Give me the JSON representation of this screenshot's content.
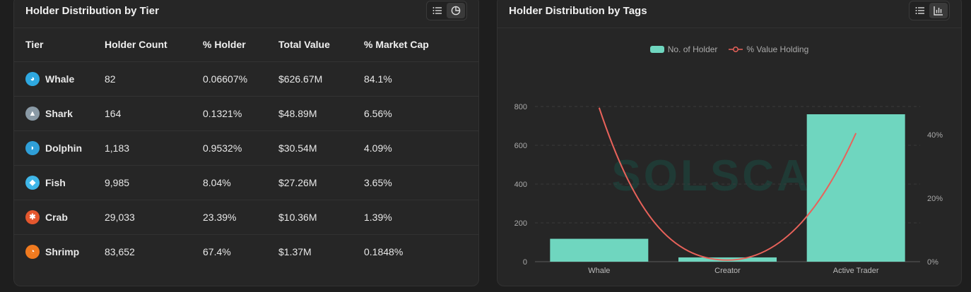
{
  "tier_panel": {
    "title": "Holder Distribution by Tier",
    "columns": [
      "Tier",
      "Holder Count",
      "% Holder",
      "Total Value",
      "% Market Cap"
    ],
    "rows": [
      {
        "tier": "Whale",
        "icon": "whale-icon",
        "color": "#2ea8e0",
        "holder_count": "82",
        "pct_holder": "0.06607%",
        "total_value": "$626.67M",
        "pct_market_cap": "84.1%"
      },
      {
        "tier": "Shark",
        "icon": "shark-icon",
        "color": "#8a9aa6",
        "holder_count": "164",
        "pct_holder": "0.1321%",
        "total_value": "$48.89M",
        "pct_market_cap": "6.56%"
      },
      {
        "tier": "Dolphin",
        "icon": "dolphin-icon",
        "color": "#2f9fd8",
        "holder_count": "1,183",
        "pct_holder": "0.9532%",
        "total_value": "$30.54M",
        "pct_market_cap": "4.09%"
      },
      {
        "tier": "Fish",
        "icon": "fish-icon",
        "color": "#3fb6e8",
        "holder_count": "9,985",
        "pct_holder": "8.04%",
        "total_value": "$27.26M",
        "pct_market_cap": "3.65%"
      },
      {
        "tier": "Crab",
        "icon": "crab-icon",
        "color": "#e4572e",
        "holder_count": "29,033",
        "pct_holder": "23.39%",
        "total_value": "$10.36M",
        "pct_market_cap": "1.39%"
      },
      {
        "tier": "Shrimp",
        "icon": "shrimp-icon",
        "color": "#f07a1f",
        "holder_count": "83,652",
        "pct_holder": "67.4%",
        "total_value": "$1.37M",
        "pct_market_cap": "0.1848%"
      }
    ]
  },
  "tags_panel": {
    "title": "Holder Distribution by Tags",
    "watermark": "SOLSCAN"
  },
  "colors": {
    "bar": "#6fd6bf",
    "line": "#e8625a",
    "background": "#262626"
  },
  "chart_data": {
    "type": "bar",
    "categories": [
      "Whale",
      "Creator",
      "Active Trader"
    ],
    "series": [
      {
        "name": "No. of Holder",
        "type": "bar",
        "axis": "left",
        "values": [
          118,
          22,
          760
        ]
      },
      {
        "name": "% Value Holding",
        "type": "line",
        "axis": "right",
        "values": [
          48.5,
          0.5,
          40.5
        ]
      }
    ],
    "y_left": {
      "ticks": [
        "0",
        "200",
        "400",
        "600",
        "800"
      ],
      "range": [
        0,
        800
      ]
    },
    "y_right": {
      "ticks": [
        "0%",
        "20%",
        "40%"
      ],
      "range": [
        0,
        40
      ]
    },
    "grid": true,
    "legend_position": "top-center"
  }
}
